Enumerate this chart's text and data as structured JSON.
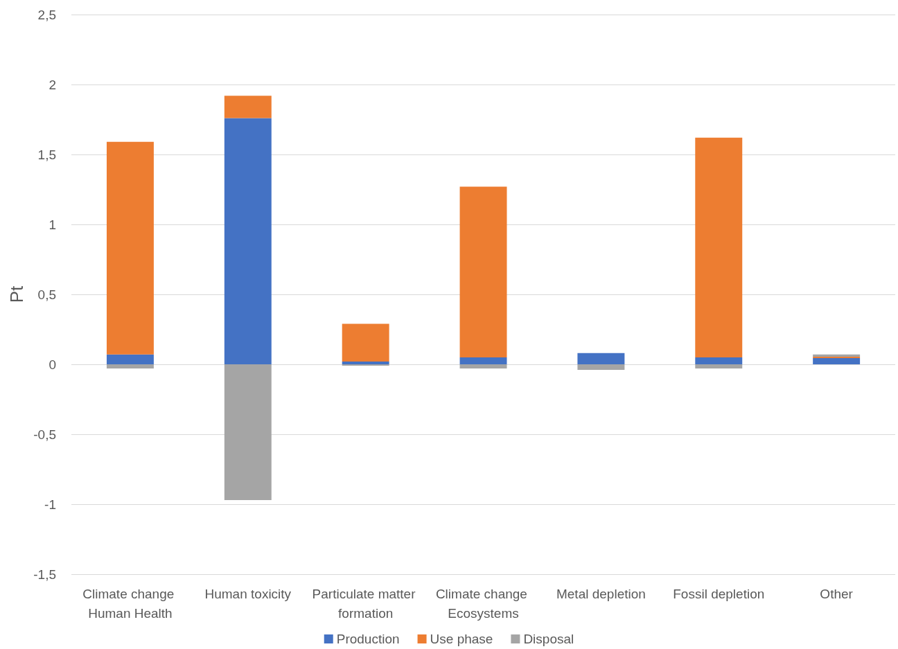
{
  "chart_data": {
    "type": "bar",
    "stacked": true,
    "ylabel": "Pt",
    "categories": [
      "Climate change Human Health",
      "Human toxicity",
      "Particulate matter formation",
      "Climate change Ecosystems",
      "Metal depletion",
      "Fossil depletion",
      "Other"
    ],
    "series": [
      {
        "name": "Production",
        "color": "#4472c4",
        "values": [
          0.07,
          1.76,
          0.02,
          0.05,
          0.08,
          0.05,
          0.045
        ]
      },
      {
        "name": "Use phase",
        "color": "#ed7d31",
        "values": [
          1.52,
          0.16,
          0.27,
          1.22,
          0,
          1.57,
          0.01
        ]
      },
      {
        "name": "Disposal",
        "color": "#a5a5a5",
        "values": [
          -0.03,
          -0.97,
          -0.01,
          -0.03,
          -0.04,
          -0.03,
          0.015
        ]
      }
    ],
    "ylim": [
      -1.5,
      2.5
    ],
    "yticks": [
      {
        "value": -1.5,
        "label": "-1,5"
      },
      {
        "value": -1,
        "label": "-1"
      },
      {
        "value": -0.5,
        "label": "-0,5"
      },
      {
        "value": 0,
        "label": "0"
      },
      {
        "value": 0.5,
        "label": "0,5"
      },
      {
        "value": 1,
        "label": "1"
      },
      {
        "value": 1.5,
        "label": "1,5"
      },
      {
        "value": 2,
        "label": "2"
      },
      {
        "value": 2.5,
        "label": "2,5"
      }
    ],
    "grid": true,
    "legend": "bottom"
  }
}
